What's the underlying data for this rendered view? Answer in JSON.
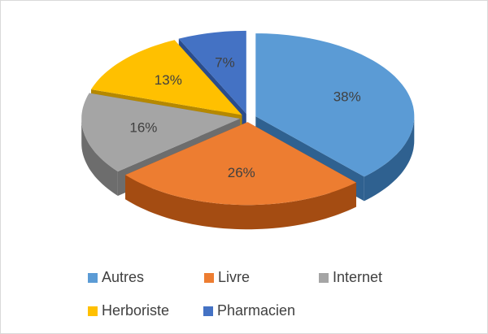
{
  "chart_data": {
    "type": "pie",
    "categories": [
      "Autres",
      "Livre",
      "Internet",
      "Herboriste",
      "Pharmacien"
    ],
    "values": [
      38,
      26,
      16,
      13,
      7
    ],
    "value_labels": [
      "38%",
      "26%",
      "16%",
      "13%",
      "7%"
    ],
    "colors": [
      "#5b9bd5",
      "#ed7d31",
      "#a5a5a5",
      "#ffc000",
      "#4472c4"
    ],
    "side_colors": [
      "#2f6190",
      "#a44c12",
      "#6d6d6d",
      "#b58800",
      "#2a4c8c"
    ]
  }
}
